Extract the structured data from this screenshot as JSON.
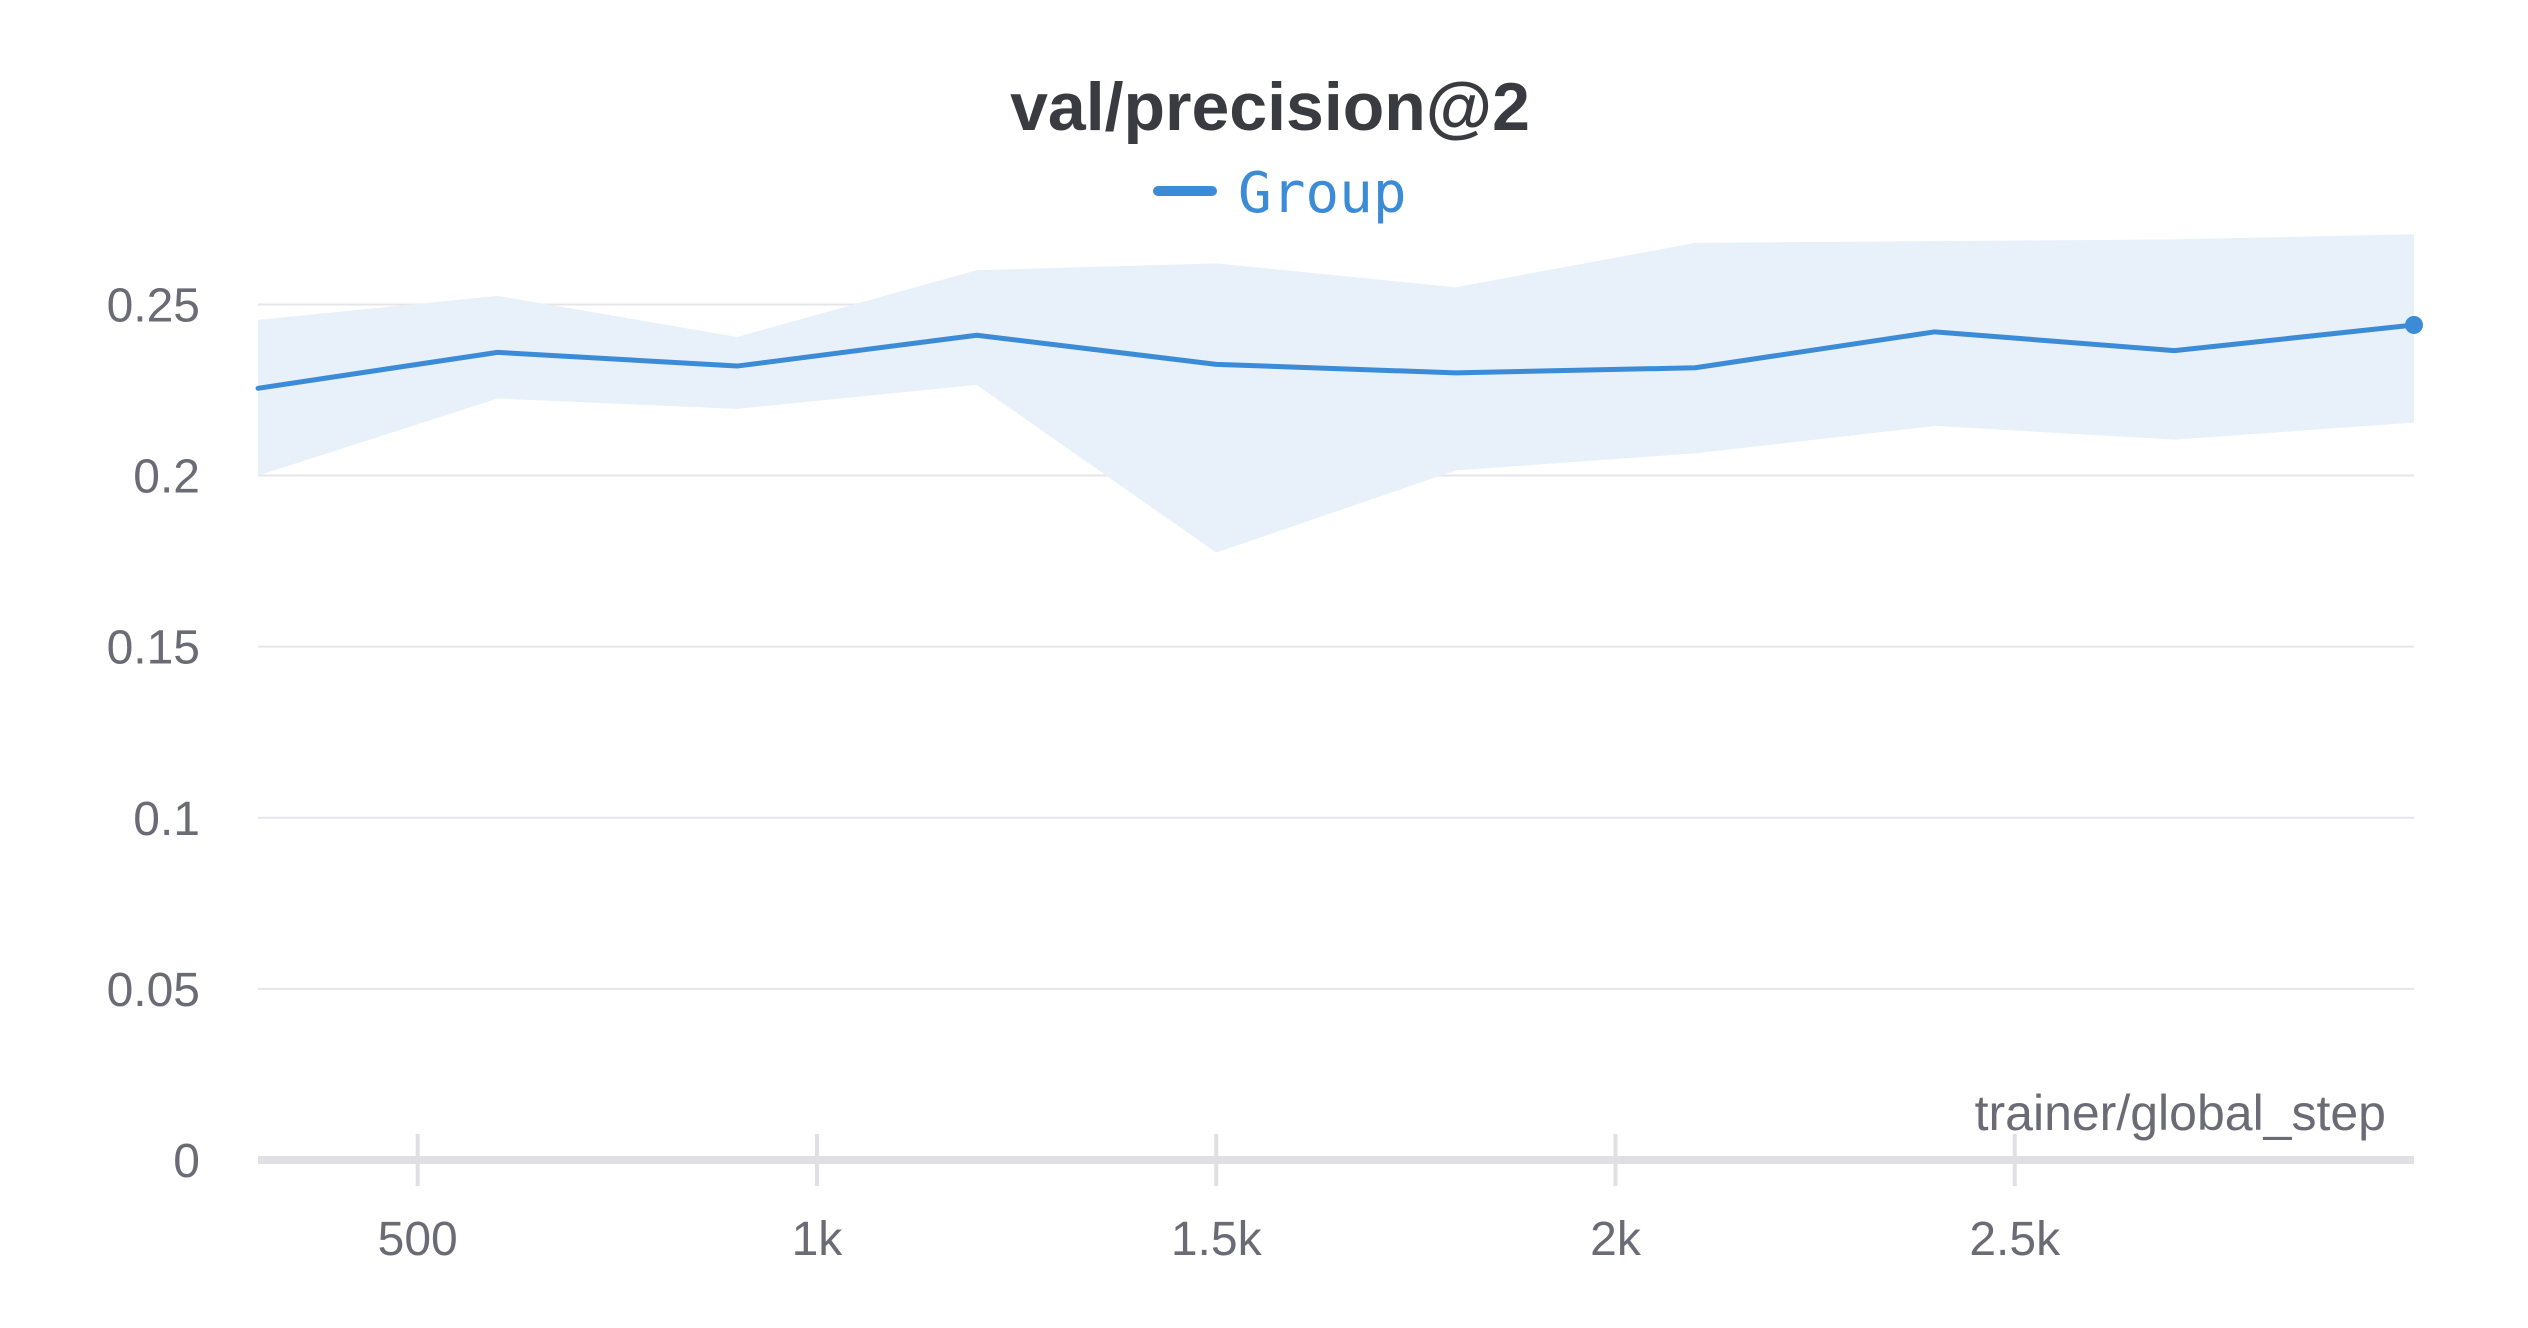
{
  "chart_data": {
    "type": "line",
    "title": "val/precision@2",
    "xlabel": "trainer/global_step",
    "ylabel": "",
    "xlim": [
      300,
      3000
    ],
    "ylim": [
      0,
      0.27
    ],
    "x_ticks": [
      {
        "value": 500,
        "label": "500"
      },
      {
        "value": 1000,
        "label": "1k"
      },
      {
        "value": 1500,
        "label": "1.5k"
      },
      {
        "value": 2000,
        "label": "2k"
      },
      {
        "value": 2500,
        "label": "2.5k"
      }
    ],
    "y_ticks": [
      {
        "value": 0,
        "label": "0"
      },
      {
        "value": 0.05,
        "label": "0.05"
      },
      {
        "value": 0.1,
        "label": "0.1"
      },
      {
        "value": 0.15,
        "label": "0.15"
      },
      {
        "value": 0.2,
        "label": "0.2"
      },
      {
        "value": 0.25,
        "label": "0.25"
      }
    ],
    "grid": true,
    "legend_position": "top-center",
    "series": [
      {
        "name": "Group",
        "color": "#3b8bd6",
        "band_color": "#e8f0fa",
        "x": [
          300,
          600,
          900,
          1200,
          1500,
          1800,
          2100,
          2400,
          2700,
          3000
        ],
        "y": [
          0.2255,
          0.236,
          0.232,
          0.241,
          0.2325,
          0.23,
          0.2315,
          0.242,
          0.2365,
          0.244
        ],
        "y_min": [
          0.2,
          0.2225,
          0.2195,
          0.2265,
          0.1775,
          0.2015,
          0.2065,
          0.2145,
          0.2105,
          0.2155
        ],
        "y_max": [
          0.2455,
          0.2525,
          0.2405,
          0.26,
          0.262,
          0.255,
          0.268,
          0.2685,
          0.269,
          0.2705
        ]
      }
    ]
  }
}
